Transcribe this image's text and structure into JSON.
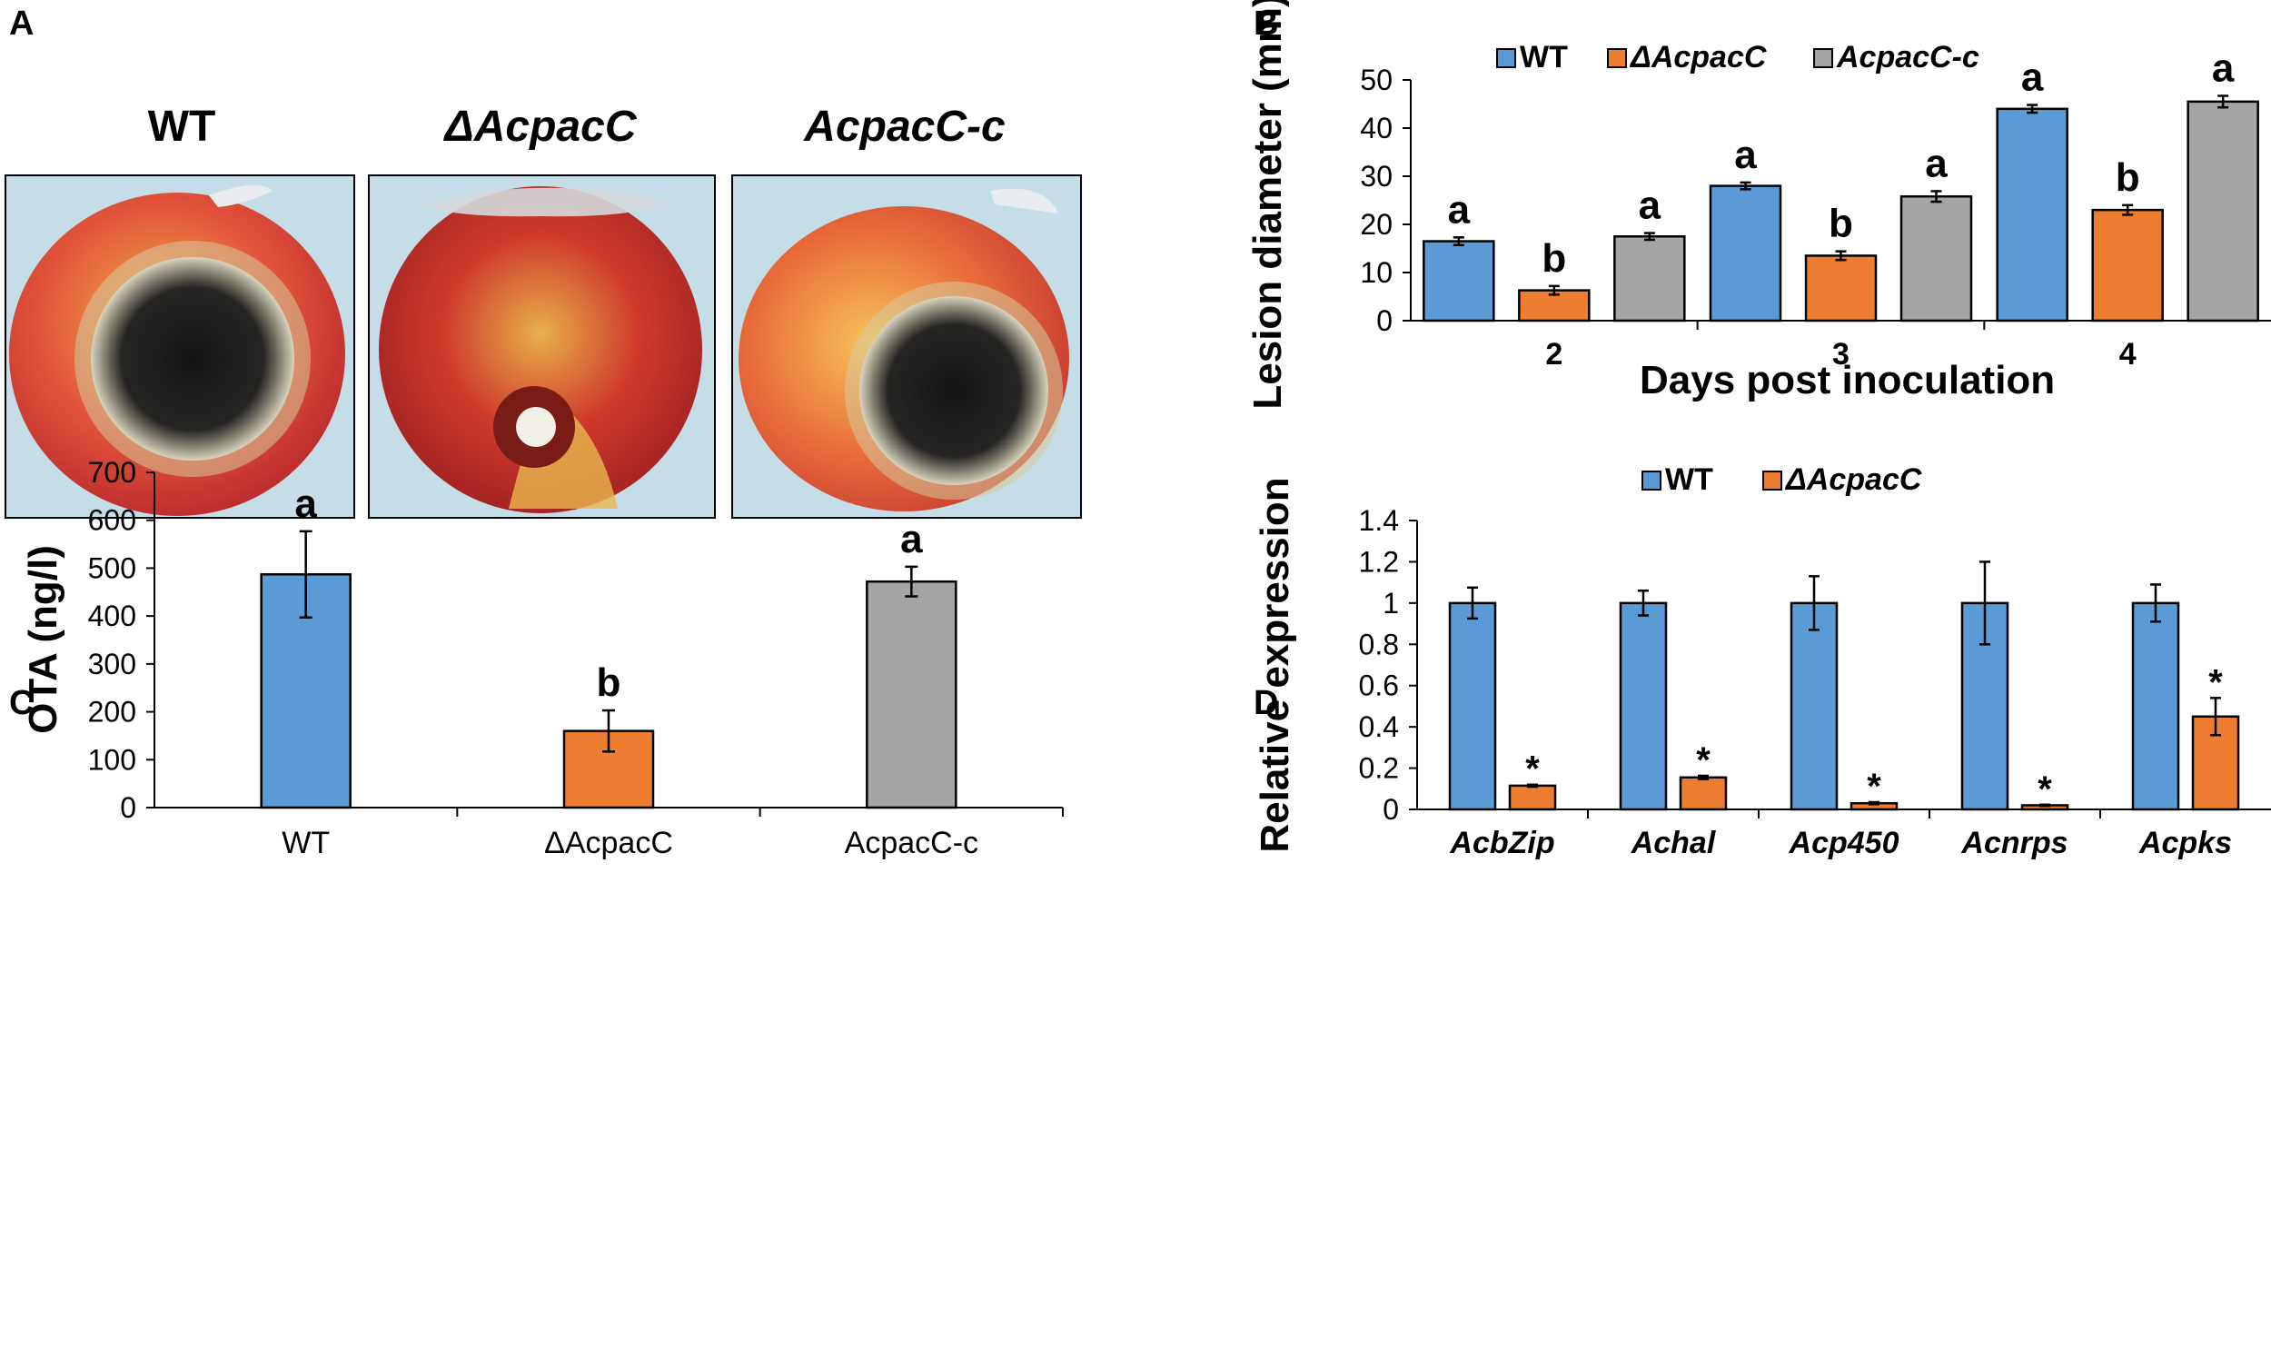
{
  "panel_letters": [
    "A",
    "B",
    "C",
    "D"
  ],
  "colors": {
    "wt": "#5b9bd5",
    "mutant": "#ed7d31",
    "complement": "#a5a5a5",
    "axis": "#000000"
  },
  "panel_a": {
    "labels": [
      "WT",
      "ΔAcpacC",
      "AcpacC-c"
    ]
  },
  "chart_data": [
    {
      "panel": "B",
      "type": "bar",
      "title": "",
      "legend": [
        "WT",
        "ΔAcpacC",
        "AcpacC-c"
      ],
      "legend_italic": [
        false,
        true,
        true
      ],
      "legend_position": "top",
      "categories": [
        "2",
        "3",
        "4"
      ],
      "series": [
        {
          "name": "WT",
          "values": [
            16.5,
            28,
            44
          ],
          "errors": [
            0.8,
            0.7,
            0.8
          ]
        },
        {
          "name": "ΔAcpacC",
          "values": [
            6.3,
            13.5,
            23
          ],
          "errors": [
            0.9,
            0.9,
            1.0
          ]
        },
        {
          "name": "AcpacC-c",
          "values": [
            17.5,
            25.8,
            45.5
          ],
          "errors": [
            0.7,
            1.1,
            1.2
          ]
        }
      ],
      "letters": [
        [
          "a",
          "b",
          "a"
        ],
        [
          "a",
          "b",
          "a"
        ],
        [
          "a",
          "b",
          "a"
        ]
      ],
      "xlabel": "Days post inoculation",
      "ylabel": "Lesion diameter (mm)",
      "ylim": [
        0,
        50
      ],
      "yticks": [
        "0",
        "10",
        "20",
        "30",
        "40",
        "50"
      ]
    },
    {
      "panel": "C",
      "type": "bar",
      "title": "",
      "categories": [
        "WT",
        "ΔAcpacC",
        "AcpacC-c"
      ],
      "values": [
        487,
        160,
        472
      ],
      "errors": [
        90,
        43,
        31
      ],
      "letters": [
        "a",
        "b",
        "a"
      ],
      "xlabel": "",
      "ylabel": "OTA (ng/l)",
      "ylim": [
        0,
        700
      ],
      "yticks": [
        "0",
        "100",
        "200",
        "300",
        "400",
        "500",
        "600",
        "700"
      ]
    },
    {
      "panel": "D",
      "type": "bar",
      "title": "",
      "legend": [
        "WT",
        "ΔAcpacC"
      ],
      "legend_italic": [
        false,
        true
      ],
      "legend_position": "top",
      "categories": [
        "AcbZip",
        "Achal",
        "Acp450",
        "Acnrps",
        "Acpks"
      ],
      "series": [
        {
          "name": "WT",
          "values": [
            1,
            1,
            1,
            1,
            1
          ],
          "errors": [
            0.075,
            0.06,
            0.13,
            0.2,
            0.09
          ]
        },
        {
          "name": "ΔAcpacC",
          "values": [
            0.115,
            0.155,
            0.03,
            0.02,
            0.45
          ],
          "errors": [
            0.005,
            0.008,
            0.005,
            0.003,
            0.09
          ]
        }
      ],
      "stars": [
        "*",
        "*",
        "*",
        "*",
        "*"
      ],
      "xlabel": "",
      "ylabel": "Relative expression",
      "ylim": [
        0,
        1.4
      ],
      "yticks": [
        "0",
        "0.2",
        "0.4",
        "0.6",
        "0.8",
        "1",
        "1.2",
        "1.4"
      ]
    }
  ]
}
